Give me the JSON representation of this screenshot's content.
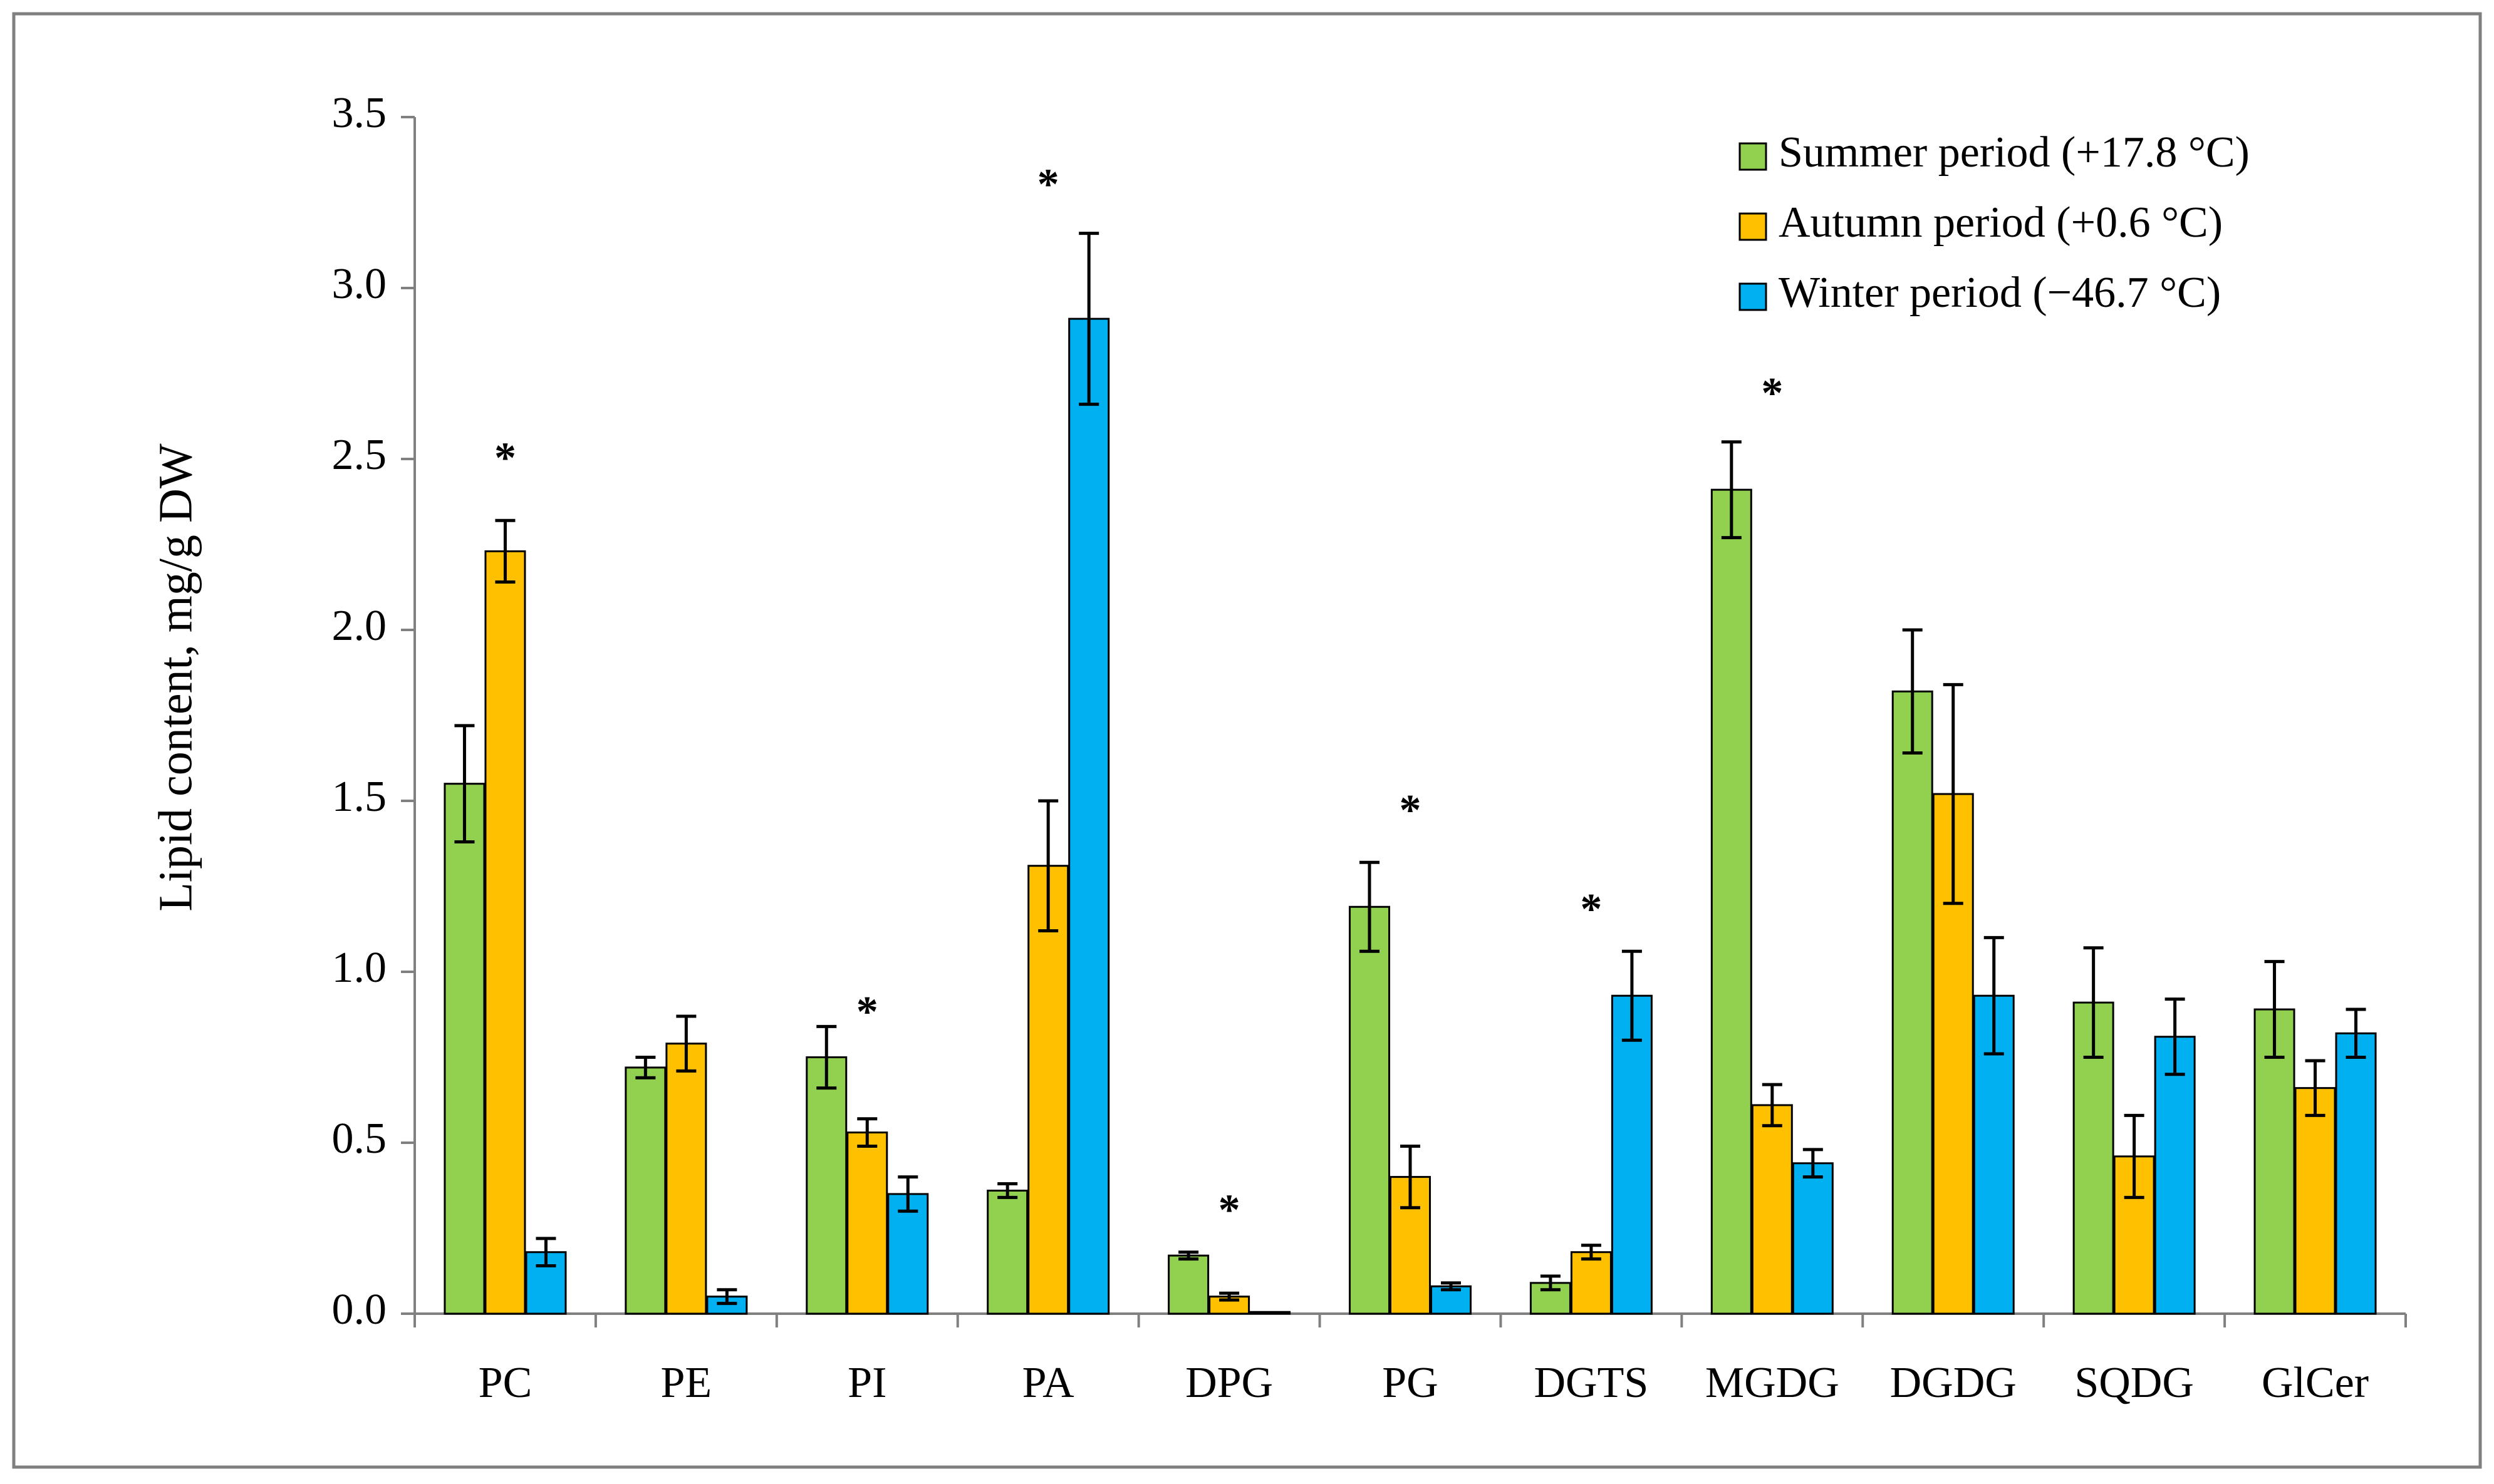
{
  "chart_data": {
    "type": "bar",
    "title": "",
    "xlabel": "",
    "ylabel": "Lipid content, mg/g DW",
    "ylim": [
      0,
      3.5
    ],
    "yticks": [
      "0.0",
      "0.5",
      "1.0",
      "1.5",
      "2.0",
      "2.5",
      "3.0",
      "3.5"
    ],
    "grid": false,
    "legend_position": "top-right",
    "categories": [
      "PC",
      "PE",
      "PI",
      "PA",
      "DPG",
      "PG",
      "DGTS",
      "MGDG",
      "DGDG",
      "SQDG",
      "GlCer"
    ],
    "series": [
      {
        "name": "Summer period (+17.8 °C)",
        "color": "#92D050",
        "values": [
          1.55,
          0.72,
          0.75,
          0.36,
          0.17,
          1.19,
          0.09,
          2.41,
          1.82,
          0.91,
          0.89
        ],
        "errors": [
          0.17,
          0.03,
          0.09,
          0.02,
          0.01,
          0.13,
          0.02,
          0.14,
          0.18,
          0.16,
          0.14
        ]
      },
      {
        "name": "Autumn period (+0.6 °C)",
        "color": "#FFC000",
        "values": [
          2.23,
          0.79,
          0.53,
          1.31,
          0.05,
          0.4,
          0.18,
          0.61,
          1.52,
          0.46,
          0.66
        ],
        "errors": [
          0.09,
          0.08,
          0.04,
          0.19,
          0.01,
          0.09,
          0.02,
          0.06,
          0.32,
          0.12,
          0.08
        ]
      },
      {
        "name": "Winter period (−46.7 °C)",
        "color": "#00B0F0",
        "values": [
          0.18,
          0.05,
          0.35,
          2.91,
          0.005,
          0.08,
          0.93,
          0.44,
          0.93,
          0.81,
          0.82
        ],
        "errors": [
          0.04,
          0.02,
          0.05,
          0.25,
          0.0,
          0.01,
          0.13,
          0.04,
          0.17,
          0.11,
          0.07
        ]
      }
    ],
    "annotations": [
      {
        "text": "*",
        "category": "PC",
        "y": 2.49
      },
      {
        "text": "*",
        "category": "PI",
        "y": 0.87
      },
      {
        "text": "*",
        "category": "PA",
        "y": 3.29
      },
      {
        "text": "*",
        "category": "DPG",
        "y": 0.29
      },
      {
        "text": "*",
        "category": "PG",
        "y": 1.46
      },
      {
        "text": "*",
        "category": "DGTS",
        "y": 1.17
      },
      {
        "text": "*",
        "category": "MGDG",
        "y": 2.68
      }
    ]
  }
}
